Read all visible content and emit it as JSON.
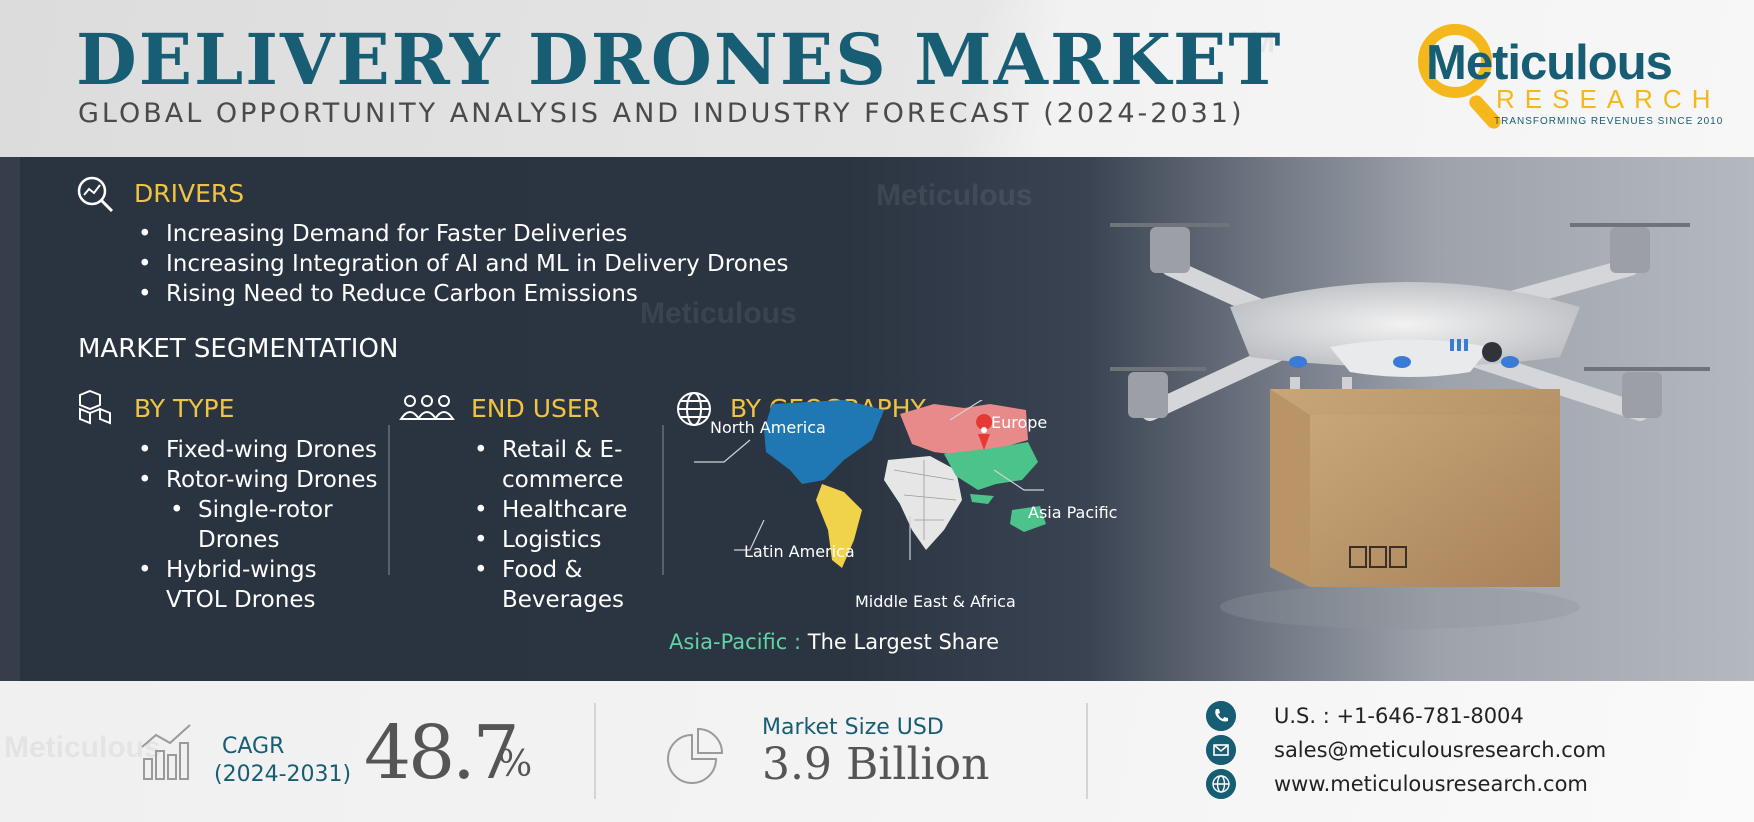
{
  "header": {
    "title": "DELIVERY DRONES MARKET",
    "subtitle": "GLOBAL OPPORTUNITY ANALYSIS AND INDUSTRY FORECAST (2024-2031)"
  },
  "logo": {
    "name": "Meticulous",
    "research": "RESEARCH",
    "tagline": "TRANSFORMING REVENUES SINCE 2010"
  },
  "drivers": {
    "heading": "DRIVERS",
    "items": [
      "Increasing Demand for Faster Deliveries",
      "Increasing Integration of AI and ML in Delivery Drones",
      "Rising Need to Reduce Carbon Emissions"
    ]
  },
  "segmentation": {
    "heading": "MARKET SEGMENTATION",
    "by_type": {
      "heading": "BY TYPE",
      "items": [
        "Fixed-wing Drones",
        "Rotor-wing Drones",
        "Single-rotor Drones",
        "Hybrid-wings VTOL Drones"
      ]
    },
    "end_user": {
      "heading": "END USER",
      "items": [
        "Retail & E-commerce",
        "Healthcare",
        "Logistics",
        "Food & Beverages"
      ]
    },
    "geography": {
      "heading": "BY GEOGRAPHY",
      "labels": {
        "north_america": "North America",
        "europe": "Europe",
        "asia_pacific": "Asia Pacific",
        "latin_america": "Latin America",
        "mea": "Middle East & Africa"
      },
      "largest_region": "Asia-Pacific :",
      "largest_text": "The Largest Share",
      "colors": {
        "north_america": "#1f78b4",
        "europe": "#e88a8a",
        "asia_pacific": "#4cc38a",
        "latin_america": "#f1d24b",
        "mea": "#e6e6e6"
      }
    }
  },
  "footer": {
    "cagr_label": "CAGR",
    "cagr_period": "(2024-2031)",
    "cagr_value": "48.7",
    "cagr_unit": "%",
    "market_size_label": "Market Size USD",
    "market_size_value": "3.9 Billion",
    "phone": "U.S. : +1-646-781-8004",
    "email": "sales@meticulousresearch.com",
    "website": "www.meticulousresearch.com"
  },
  "colors": {
    "brand_teal": "#175d73",
    "accent_yellow": "#f0c443",
    "highlight_green": "#5fd4a6",
    "panel_dark": "#2a3340"
  }
}
